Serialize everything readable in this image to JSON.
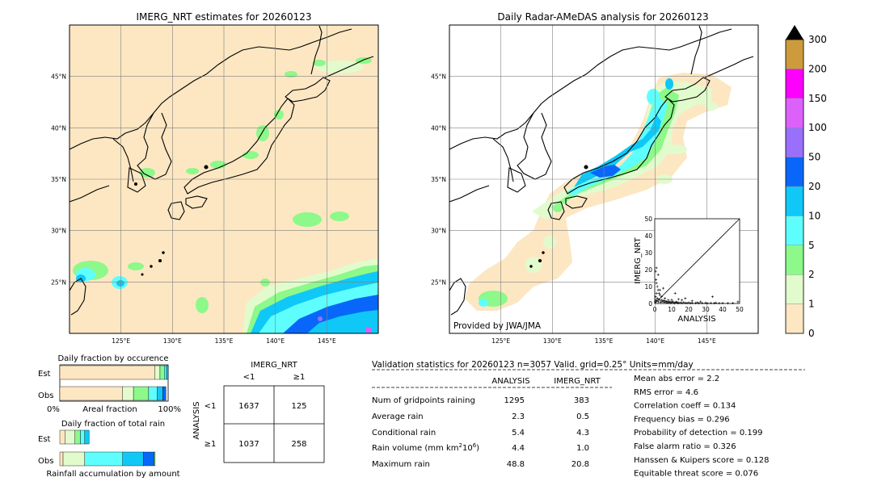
{
  "chart_data": [
    {
      "type": "heatmap",
      "title": "IMERG_NRT estimates for 20260123",
      "lon_ticks": [
        "125°E",
        "130°E",
        "135°E",
        "140°E",
        "145°E"
      ],
      "lat_ticks": [
        "25°N",
        "30°N",
        "35°N",
        "40°N",
        "45°N"
      ],
      "lon_range": [
        120,
        150
      ],
      "lat_range": [
        20,
        50
      ],
      "units": "mm/day"
    },
    {
      "type": "heatmap",
      "title": "Daily Radar-AMeDAS analysis for 20260123",
      "lon_ticks": [
        "125°E",
        "130°E",
        "135°E",
        "140°E",
        "145°E"
      ],
      "lat_ticks": [
        "25°N",
        "30°N",
        "35°N",
        "40°N",
        "45°N"
      ],
      "lon_range": [
        120,
        150
      ],
      "lat_range": [
        20,
        50
      ],
      "credit": "Provided by JWA/JMA",
      "inset_scatter": {
        "type": "scatter",
        "xlabel": "ANALYSIS",
        "ylabel": "IMERG_NRT",
        "xlim": [
          0,
          50
        ],
        "ylim": [
          0,
          50
        ],
        "ticks": [
          "0",
          "10",
          "20",
          "30",
          "40",
          "50"
        ],
        "points": [
          [
            0.5,
            19
          ],
          [
            0.8,
            14
          ],
          [
            1,
            12
          ],
          [
            1.5,
            10
          ],
          [
            2,
            8
          ],
          [
            1,
            6
          ],
          [
            2.5,
            6
          ],
          [
            3,
            5
          ],
          [
            0.5,
            4
          ],
          [
            1.5,
            3
          ],
          [
            2,
            2.5
          ],
          [
            3,
            2
          ],
          [
            4,
            2
          ],
          [
            5,
            1.8
          ],
          [
            6,
            1.5
          ],
          [
            7,
            1.2
          ],
          [
            8,
            1
          ],
          [
            9,
            1
          ],
          [
            10,
            0.8
          ],
          [
            11,
            0.6
          ],
          [
            12,
            0.5
          ],
          [
            13,
            0.7
          ],
          [
            14,
            0.4
          ],
          [
            15,
            0.5
          ],
          [
            16,
            0.3
          ],
          [
            17,
            0.6
          ],
          [
            18,
            0.4
          ],
          [
            19,
            0.3
          ],
          [
            20,
            0.5
          ],
          [
            21,
            0.2
          ],
          [
            22,
            0.4
          ],
          [
            24,
            0.3
          ],
          [
            25,
            0.5
          ],
          [
            26,
            0.2
          ],
          [
            28,
            0.3
          ],
          [
            30,
            0.4
          ],
          [
            31,
            0.2
          ],
          [
            33,
            0.3
          ],
          [
            35,
            0.2
          ],
          [
            36,
            0.4
          ],
          [
            38,
            0.2
          ],
          [
            40,
            0.3
          ],
          [
            43,
            0.2
          ],
          [
            46,
            0.3
          ],
          [
            49,
            1
          ],
          [
            0.3,
            1
          ],
          [
            0.6,
            2
          ],
          [
            1.2,
            1.5
          ],
          [
            2.2,
            1
          ],
          [
            3.5,
            0.8
          ],
          [
            4.5,
            1.2
          ],
          [
            5.5,
            0.6
          ],
          [
            6.5,
            0.9
          ],
          [
            7.5,
            0.4
          ],
          [
            8.5,
            0.7
          ],
          [
            9.5,
            0.3
          ],
          [
            10.5,
            1.1
          ],
          [
            11.5,
            0.2
          ],
          [
            12.5,
            0.9
          ],
          [
            13.5,
            0.3
          ],
          [
            3,
            8
          ],
          [
            4,
            4
          ],
          [
            6,
            3
          ],
          [
            8,
            2
          ],
          [
            10,
            2.2
          ],
          [
            5,
            9
          ],
          [
            2,
            17
          ],
          [
            1,
            21
          ],
          [
            12,
            6
          ],
          [
            16,
            2
          ],
          [
            34,
            4
          ],
          [
            14,
            2.5
          ],
          [
            22,
            1.5
          ],
          [
            18,
            3
          ],
          [
            27,
            1
          ]
        ]
      }
    }
  ],
  "colorbar": {
    "labels": [
      "0",
      "1",
      "2",
      "5",
      "10",
      "20",
      "50",
      "100",
      "150",
      "200",
      "300"
    ],
    "colors": [
      "#fce7c2",
      "#e2fbcd",
      "#8cf98a",
      "#5ffefe",
      "#0fc8f8",
      "#0867fa",
      "#9a6ffb",
      "#db61fa",
      "#fe00fe",
      "#cd9a3c"
    ],
    "extend_color": "#000000"
  },
  "fraction_occurrence": {
    "title": "Daily fraction by occurence",
    "rows": [
      "Est",
      "Obs"
    ],
    "xlabel_left": "0%",
    "xlabel_mid": "Areal fraction",
    "xlabel_right": "100%",
    "est_segments": [
      [
        "#fce7c2",
        0.875
      ],
      [
        "#e2fbcd",
        0.05
      ],
      [
        "#8cf98a",
        0.04
      ],
      [
        "#5ffefe",
        0.02
      ],
      [
        "#0fc8f8",
        0.015
      ]
    ],
    "obs_segments": [
      [
        "#fce7c2",
        0.58
      ],
      [
        "#e2fbcd",
        0.1
      ],
      [
        "#8cf98a",
        0.14
      ],
      [
        "#5ffefe",
        0.08
      ],
      [
        "#0fc8f8",
        0.05
      ],
      [
        "#0867fa",
        0.03
      ]
    ]
  },
  "fraction_total": {
    "title": "Daily fraction of total rain",
    "rows": [
      "Est",
      "Obs"
    ],
    "xlabel": "Rainfall accumulation by amount",
    "est_segments": [
      [
        "#fce7c2",
        0.05
      ],
      [
        "#e2fbcd",
        0.09
      ],
      [
        "#8cf98a",
        0.05
      ],
      [
        "#5ffefe",
        0.04
      ],
      [
        "#0fc8f8",
        0.04
      ]
    ],
    "obs_segments": [
      [
        "#fce7c2",
        0.03
      ],
      [
        "#e2fbcd",
        0.2
      ],
      [
        "#5ffefe",
        0.35
      ],
      [
        "#0fc8f8",
        0.19
      ],
      [
        "#0867fa",
        0.1
      ],
      [
        "#8cf98a",
        0.01
      ]
    ]
  },
  "contingency": {
    "title": "IMERG_NRT",
    "col_headers": [
      "<1",
      "≥1"
    ],
    "row_headers": [
      "<1",
      "≥1"
    ],
    "row_axis_label": "ANALYSIS",
    "cells": [
      [
        "1637",
        "125"
      ],
      [
        "1037",
        "258"
      ]
    ]
  },
  "validation": {
    "header": "Validation statistics for 20260123  n=3057 Valid. grid=0.25° Units=mm/day",
    "col_analysis": "ANALYSIS",
    "col_imerg": "IMERG_NRT",
    "rows": [
      {
        "label": "Num of gridpoints raining",
        "analysis": "1295",
        "imerg": "383"
      },
      {
        "label": "Average rain",
        "analysis": "2.3",
        "imerg": "0.5"
      },
      {
        "label": "Conditional rain",
        "analysis": "5.4",
        "imerg": "4.3"
      },
      {
        "label": "Rain volume (mm km",
        "label_sup": "2",
        "label_mid": "10",
        "label_sup2": "6",
        "label_end": ")",
        "analysis": "4.4",
        "imerg": "1.0"
      },
      {
        "label": "Maximum rain",
        "analysis": "48.8",
        "imerg": "20.8"
      }
    ],
    "scores": [
      "Mean abs error =    2.2",
      "RMS error =    4.6",
      "Correlation coeff =  0.134",
      "Frequency bias =  0.296",
      "Probability of detection =  0.199",
      "False alarm ratio =  0.326",
      "Hanssen & Kuipers score =  0.128",
      "Equitable threat score =  0.076"
    ]
  }
}
